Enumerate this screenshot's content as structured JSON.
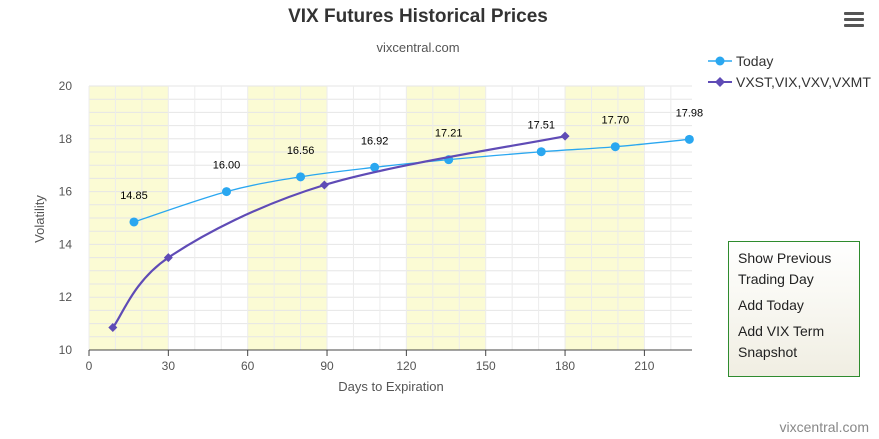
{
  "title": "VIX Futures Historical Prices",
  "subtitle": "vixcentral.com",
  "credits": "vixcentral.com",
  "menu_icon": "hamburger-icon",
  "side_menu": {
    "items": [
      "Show Previous Trading Day",
      "Add Today",
      "Add VIX Term Snapshot"
    ]
  },
  "colors": {
    "today": "#2aa7f0",
    "vxst": "#5f4bb6",
    "band": "#fbfbd4",
    "grid": "#e6e6e6"
  },
  "chart_data": {
    "type": "line",
    "title": "VIX Futures Historical Prices",
    "subtitle": "vixcentral.com",
    "xlabel": "Days to Expiration",
    "ylabel": "Volatility",
    "xlim": [
      0,
      228
    ],
    "ylim": [
      10,
      20
    ],
    "x_ticks": [
      0,
      30,
      60,
      90,
      120,
      150,
      180,
      210
    ],
    "y_ticks": [
      10,
      12,
      14,
      16,
      18,
      20
    ],
    "bands": [
      [
        0,
        30
      ],
      [
        60,
        90
      ],
      [
        120,
        150
      ],
      [
        180,
        210
      ]
    ],
    "grid": true,
    "legend": "top-right",
    "series": [
      {
        "name": "Today",
        "marker": "circle",
        "x": [
          17,
          52,
          80,
          108,
          136,
          171,
          199,
          227
        ],
        "y": [
          14.85,
          16.0,
          16.56,
          16.92,
          17.21,
          17.51,
          17.7,
          17.98
        ],
        "labels": [
          "14.85",
          "16.00",
          "16.56",
          "16.92",
          "17.21",
          "17.51",
          "17.70",
          "17.98"
        ]
      },
      {
        "name": "VXST,VIX,VXV,VXMT",
        "marker": "diamond",
        "x": [
          9,
          30,
          89,
          180
        ],
        "y": [
          10.85,
          13.5,
          16.25,
          18.1
        ]
      }
    ]
  }
}
